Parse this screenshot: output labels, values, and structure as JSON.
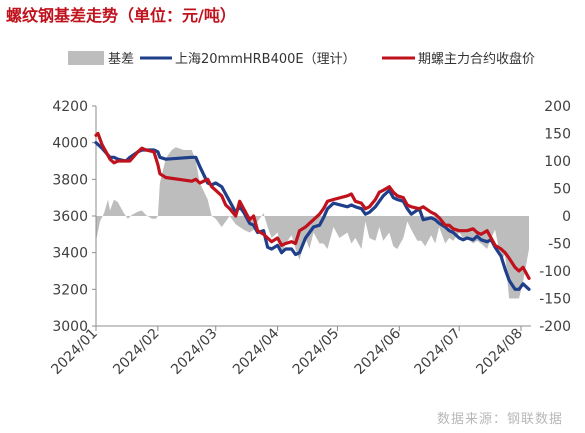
{
  "title": "螺纹钢基差走势（单位：元/吨）",
  "watermark": "数据来源：钢联数据",
  "colors": {
    "basis": "#bdbdbd",
    "spot": "#1f3f8a",
    "futures": "#c0121c"
  },
  "chart_data": {
    "type": "line",
    "legend_position": "top",
    "grid": false,
    "xlabel": "",
    "ylabel": "",
    "y2label": "",
    "ylim": [
      3000,
      4200
    ],
    "y2lim": [
      -200,
      200
    ],
    "yticks": [
      3000,
      3200,
      3400,
      3600,
      3800,
      4000,
      4200
    ],
    "y2ticks": [
      -200,
      -150,
      -100,
      -50,
      0,
      50,
      100,
      150,
      200
    ],
    "xlim": [
      "2024-01-01",
      "2024-08-06"
    ],
    "xticks": [
      "2024/01",
      "2024/02",
      "2024/03",
      "2024/04",
      "2024/05",
      "2024/06",
      "2024/07",
      "2024/08"
    ],
    "series": [
      {
        "name": "基差",
        "type": "area",
        "axis": "right",
        "x": [
          "2024-01-01",
          "2024-01-03",
          "2024-01-05",
          "2024-01-07",
          "2024-01-08",
          "2024-01-10",
          "2024-01-12",
          "2024-01-15",
          "2024-01-17",
          "2024-01-19",
          "2024-01-22",
          "2024-01-24",
          "2024-01-26",
          "2024-01-29",
          "2024-01-31",
          "2024-02-01",
          "2024-02-02",
          "2024-02-05",
          "2024-02-08",
          "2024-02-10",
          "2024-02-14",
          "2024-02-18",
          "2024-02-20",
          "2024-02-22",
          "2024-02-26",
          "2024-02-28",
          "2024-03-01",
          "2024-03-04",
          "2024-03-06",
          "2024-03-08",
          "2024-03-11",
          "2024-03-13",
          "2024-03-15",
          "2024-03-18",
          "2024-03-20",
          "2024-03-22",
          "2024-03-25",
          "2024-03-27",
          "2024-03-29",
          "2024-04-01",
          "2024-04-03",
          "2024-04-05",
          "2024-04-08",
          "2024-04-10",
          "2024-04-12",
          "2024-04-15",
          "2024-04-17",
          "2024-04-19",
          "2024-04-22",
          "2024-04-24",
          "2024-04-26",
          "2024-04-29",
          "2024-05-02",
          "2024-05-06",
          "2024-05-08",
          "2024-05-10",
          "2024-05-13",
          "2024-05-15",
          "2024-05-17",
          "2024-05-20",
          "2024-05-22",
          "2024-05-24",
          "2024-05-27",
          "2024-05-29",
          "2024-05-31",
          "2024-06-03",
          "2024-06-05",
          "2024-06-07",
          "2024-06-10",
          "2024-06-12",
          "2024-06-14",
          "2024-06-17",
          "2024-06-19",
          "2024-06-21",
          "2024-06-24",
          "2024-06-26",
          "2024-06-28",
          "2024-07-01",
          "2024-07-03",
          "2024-07-05",
          "2024-07-08",
          "2024-07-10",
          "2024-07-12",
          "2024-07-15",
          "2024-07-17",
          "2024-07-19",
          "2024-07-22",
          "2024-07-24",
          "2024-07-26",
          "2024-07-29",
          "2024-07-31",
          "2024-08-02",
          "2024-08-05"
        ],
        "values": [
          -45,
          -10,
          5,
          30,
          10,
          30,
          25,
          5,
          -5,
          2,
          8,
          10,
          2,
          -5,
          -5,
          0,
          60,
          105,
          120,
          125,
          120,
          120,
          100,
          60,
          30,
          0,
          -5,
          -20,
          -10,
          0,
          -15,
          -20,
          -25,
          -30,
          -25,
          -10,
          5,
          -20,
          -40,
          -30,
          -70,
          -50,
          -35,
          -60,
          -80,
          -40,
          -60,
          -30,
          -50,
          -50,
          -60,
          -20,
          -40,
          -30,
          -50,
          -40,
          -60,
          -10,
          -40,
          -45,
          -20,
          -45,
          -30,
          -55,
          -60,
          -40,
          -10,
          -25,
          -45,
          -45,
          -55,
          -35,
          -50,
          -20,
          -50,
          -40,
          -45,
          -30,
          -40,
          -40,
          -50,
          -45,
          -50,
          -60,
          -40,
          -25,
          -80,
          -70,
          -150,
          -150,
          -150,
          -120,
          -60
        ]
      },
      {
        "name": "上海20mmHRB400E（理计）",
        "type": "line",
        "axis": "left",
        "x": [
          "2024-01-01",
          "2024-01-04",
          "2024-01-08",
          "2024-01-10",
          "2024-01-12",
          "2024-01-16",
          "2024-01-18",
          "2024-01-22",
          "2024-01-24",
          "2024-01-26",
          "2024-01-30",
          "2024-02-01",
          "2024-02-02",
          "2024-02-05",
          "2024-02-18",
          "2024-02-20",
          "2024-02-22",
          "2024-02-26",
          "2024-02-28",
          "2024-03-01",
          "2024-03-04",
          "2024-03-06",
          "2024-03-08",
          "2024-03-11",
          "2024-03-13",
          "2024-03-15",
          "2024-03-18",
          "2024-03-20",
          "2024-03-22",
          "2024-03-25",
          "2024-03-27",
          "2024-03-29",
          "2024-04-01",
          "2024-04-03",
          "2024-04-05",
          "2024-04-08",
          "2024-04-10",
          "2024-04-12",
          "2024-04-15",
          "2024-04-17",
          "2024-04-19",
          "2024-04-22",
          "2024-04-24",
          "2024-04-26",
          "2024-04-29",
          "2024-05-06",
          "2024-05-08",
          "2024-05-10",
          "2024-05-13",
          "2024-05-15",
          "2024-05-17",
          "2024-05-20",
          "2024-05-22",
          "2024-05-24",
          "2024-05-27",
          "2024-05-29",
          "2024-05-31",
          "2024-06-03",
          "2024-06-05",
          "2024-06-07",
          "2024-06-11",
          "2024-06-13",
          "2024-06-17",
          "2024-06-19",
          "2024-06-21",
          "2024-06-24",
          "2024-06-26",
          "2024-06-28",
          "2024-07-01",
          "2024-07-03",
          "2024-07-05",
          "2024-07-08",
          "2024-07-10",
          "2024-07-12",
          "2024-07-15",
          "2024-07-17",
          "2024-07-19",
          "2024-07-22",
          "2024-07-24",
          "2024-07-26",
          "2024-07-29",
          "2024-07-31",
          "2024-08-02",
          "2024-08-05"
        ],
        "values": [
          4000,
          3970,
          3920,
          3920,
          3910,
          3900,
          3920,
          3950,
          3960,
          3960,
          3960,
          3950,
          3920,
          3910,
          3920,
          3920,
          3870,
          3780,
          3770,
          3780,
          3760,
          3720,
          3680,
          3620,
          3650,
          3620,
          3560,
          3550,
          3510,
          3520,
          3430,
          3420,
          3440,
          3400,
          3420,
          3420,
          3390,
          3400,
          3480,
          3510,
          3540,
          3550,
          3590,
          3640,
          3670,
          3650,
          3660,
          3650,
          3640,
          3610,
          3620,
          3650,
          3680,
          3710,
          3740,
          3700,
          3690,
          3680,
          3640,
          3610,
          3640,
          3580,
          3590,
          3580,
          3560,
          3540,
          3520,
          3510,
          3480,
          3470,
          3480,
          3470,
          3490,
          3470,
          3460,
          3470,
          3430,
          3380,
          3310,
          3250,
          3200,
          3200,
          3230,
          3200
        ]
      },
      {
        "name": "期螺主力合约收盘价",
        "type": "line",
        "axis": "left",
        "x": [
          "2024-01-01",
          "2024-01-02",
          "2024-01-04",
          "2024-01-08",
          "2024-01-10",
          "2024-01-12",
          "2024-01-16",
          "2024-01-18",
          "2024-01-22",
          "2024-01-24",
          "2024-01-26",
          "2024-01-30",
          "2024-02-01",
          "2024-02-02",
          "2024-02-05",
          "2024-02-18",
          "2024-02-20",
          "2024-02-22",
          "2024-02-26",
          "2024-02-28",
          "2024-03-01",
          "2024-03-04",
          "2024-03-06",
          "2024-03-08",
          "2024-03-11",
          "2024-03-13",
          "2024-03-15",
          "2024-03-18",
          "2024-03-20",
          "2024-03-22",
          "2024-03-25",
          "2024-03-27",
          "2024-03-29",
          "2024-04-01",
          "2024-04-03",
          "2024-04-05",
          "2024-04-08",
          "2024-04-10",
          "2024-04-12",
          "2024-04-15",
          "2024-04-17",
          "2024-04-19",
          "2024-04-22",
          "2024-04-24",
          "2024-04-26",
          "2024-04-29",
          "2024-05-06",
          "2024-05-08",
          "2024-05-10",
          "2024-05-13",
          "2024-05-15",
          "2024-05-17",
          "2024-05-20",
          "2024-05-22",
          "2024-05-24",
          "2024-05-27",
          "2024-05-29",
          "2024-05-31",
          "2024-06-03",
          "2024-06-05",
          "2024-06-07",
          "2024-06-11",
          "2024-06-13",
          "2024-06-17",
          "2024-06-19",
          "2024-06-21",
          "2024-06-24",
          "2024-06-26",
          "2024-06-28",
          "2024-07-01",
          "2024-07-03",
          "2024-07-05",
          "2024-07-08",
          "2024-07-10",
          "2024-07-12",
          "2024-07-15",
          "2024-07-17",
          "2024-07-19",
          "2024-07-22",
          "2024-07-24",
          "2024-07-26",
          "2024-07-29",
          "2024-07-31",
          "2024-08-02",
          "2024-08-05"
        ],
        "values": [
          4040,
          4050,
          3990,
          3910,
          3890,
          3900,
          3900,
          3900,
          3950,
          3970,
          3960,
          3950,
          3880,
          3830,
          3810,
          3790,
          3800,
          3780,
          3800,
          3760,
          3740,
          3710,
          3660,
          3640,
          3600,
          3680,
          3640,
          3580,
          3600,
          3520,
          3500,
          3480,
          3460,
          3480,
          3440,
          3450,
          3460,
          3450,
          3520,
          3540,
          3560,
          3580,
          3610,
          3640,
          3680,
          3690,
          3710,
          3720,
          3680,
          3670,
          3640,
          3650,
          3690,
          3730,
          3740,
          3760,
          3730,
          3710,
          3700,
          3660,
          3650,
          3640,
          3650,
          3620,
          3610,
          3590,
          3550,
          3550,
          3530,
          3520,
          3520,
          3520,
          3530,
          3510,
          3500,
          3520,
          3480,
          3440,
          3420,
          3400,
          3370,
          3320,
          3300,
          3320,
          3260
        ]
      }
    ]
  }
}
